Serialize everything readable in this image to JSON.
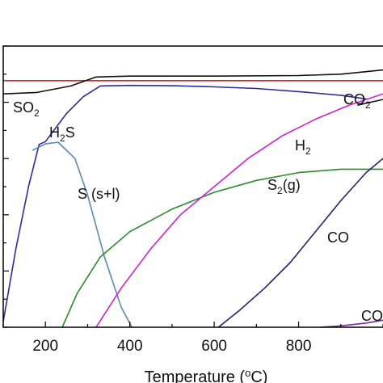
{
  "chart_data": {
    "type": "line",
    "title": "",
    "xlabel_parts": {
      "pre": "Temperature (",
      "sup": "o",
      "post": "C)"
    },
    "ylabel": "",
    "xlim": [
      100,
      1000
    ],
    "ylim": [
      0,
      1
    ],
    "x_ticks": [
      200,
      400,
      600,
      800
    ],
    "x_tick_labels": [
      "200",
      "400",
      "600",
      "800"
    ],
    "y_minor_ticks": [
      0.0,
      0.1,
      0.2,
      0.3,
      0.4,
      0.5,
      0.6,
      0.7,
      0.8,
      0.9,
      1.0
    ],
    "grid": false,
    "legend": "none (inline labels)",
    "series": [
      {
        "key": "total",
        "color": "#d7261e",
        "points": [
          [
            100,
            0.877
          ],
          [
            1000,
            0.877
          ]
        ]
      },
      {
        "key": "so2",
        "color": "#111111",
        "label": {
          "parts": [
            {
              "t": "SO"
            },
            {
              "sub": "2"
            }
          ]
        },
        "points": [
          [
            100,
            0.83
          ],
          [
            180,
            0.835
          ],
          [
            260,
            0.858
          ],
          [
            320,
            0.89
          ],
          [
            400,
            0.893
          ],
          [
            600,
            0.893
          ],
          [
            800,
            0.895
          ],
          [
            900,
            0.9
          ],
          [
            1000,
            0.915
          ]
        ]
      },
      {
        "key": "h2s",
        "color": "#2b2b9e",
        "label": {
          "parts": [
            {
              "t": "H"
            },
            {
              "sub": "2"
            },
            {
              "t": "S"
            }
          ]
        },
        "points": [
          [
            100,
            0.02
          ],
          [
            130,
            0.28
          ],
          [
            160,
            0.5
          ],
          [
            185,
            0.65
          ],
          [
            200,
            0.66
          ],
          [
            250,
            0.76
          ],
          [
            290,
            0.82
          ],
          [
            330,
            0.858
          ],
          [
            400,
            0.86
          ],
          [
            500,
            0.859
          ],
          [
            600,
            0.855
          ],
          [
            700,
            0.849
          ],
          [
            800,
            0.838
          ],
          [
            900,
            0.825
          ],
          [
            960,
            0.812
          ]
        ]
      },
      {
        "key": "s_solid_liquid",
        "color": "#5b86b5",
        "label": {
          "parts": [
            {
              "t": "S (s+l)"
            }
          ]
        },
        "points": [
          [
            170,
            0.63
          ],
          [
            200,
            0.652
          ],
          [
            230,
            0.658
          ],
          [
            270,
            0.6
          ],
          [
            300,
            0.47
          ],
          [
            340,
            0.25
          ],
          [
            380,
            0.07
          ],
          [
            405,
            0.0
          ]
        ]
      },
      {
        "key": "s2_gas",
        "color": "#2a8a2a",
        "label": {
          "parts": [
            {
              "t": "S"
            },
            {
              "sub": "2"
            },
            {
              "t": "(g)"
            }
          ]
        },
        "points": [
          [
            240,
            0.0
          ],
          [
            275,
            0.12
          ],
          [
            330,
            0.25
          ],
          [
            400,
            0.34
          ],
          [
            500,
            0.42
          ],
          [
            600,
            0.48
          ],
          [
            700,
            0.522
          ],
          [
            800,
            0.55
          ],
          [
            900,
            0.562
          ],
          [
            1000,
            0.562
          ]
        ]
      },
      {
        "key": "h2",
        "color": "#d21fd2",
        "label": {
          "parts": [
            {
              "t": "H"
            },
            {
              "sub": "2"
            }
          ]
        },
        "points": [
          [
            320,
            0.0
          ],
          [
            380,
            0.14
          ],
          [
            450,
            0.28
          ],
          [
            520,
            0.4
          ],
          [
            600,
            0.5
          ],
          [
            680,
            0.6
          ],
          [
            760,
            0.68
          ],
          [
            840,
            0.74
          ],
          [
            920,
            0.79
          ],
          [
            1000,
            0.83
          ]
        ]
      },
      {
        "key": "co",
        "color": "#23236b",
        "label": {
          "parts": [
            {
              "t": "CO"
            }
          ]
        },
        "points": [
          [
            610,
            0.0
          ],
          [
            660,
            0.06
          ],
          [
            720,
            0.14
          ],
          [
            780,
            0.23
          ],
          [
            840,
            0.34
          ],
          [
            900,
            0.45
          ],
          [
            960,
            0.55
          ],
          [
            1000,
            0.6
          ]
        ]
      },
      {
        "key": "cos",
        "color": "#7a2aa6",
        "label": {
          "parts": [
            {
              "t": "CO"
            }
          ]
        },
        "points": [
          [
            850,
            0.0
          ],
          [
            900,
            0.005
          ],
          [
            960,
            0.015
          ],
          [
            1000,
            0.025
          ]
        ]
      },
      {
        "key": "co2",
        "color": "#111111",
        "label": {
          "parts": [
            {
              "t": "CO"
            },
            {
              "sub": "2"
            }
          ]
        },
        "points": [
          [
            940,
            0.79
          ],
          [
            1000,
            0.81
          ]
        ]
      }
    ]
  }
}
